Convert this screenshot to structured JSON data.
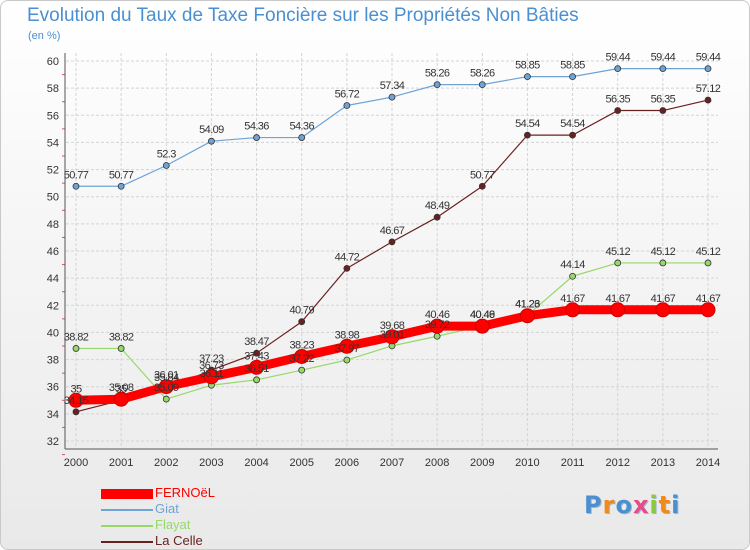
{
  "chart_data": {
    "type": "line",
    "title": "Evolution du Taux de Taxe Foncière sur les Propriétés Non Bâties",
    "unit_label": "(en %)",
    "ylim": [
      32,
      60
    ],
    "yticks": [
      "32",
      "34",
      "36",
      "38",
      "40",
      "42",
      "44",
      "46",
      "48",
      "50",
      "52",
      "54",
      "56",
      "58",
      "60"
    ],
    "x": [
      "2000",
      "2001",
      "2002",
      "2003",
      "2004",
      "2005",
      "2006",
      "2007",
      "2008",
      "2009",
      "2010",
      "2011",
      "2012",
      "2013",
      "2014"
    ],
    "grid": true,
    "legend_position": "bottom-left",
    "series": [
      {
        "name": "FERNOëL",
        "values": [
          35,
          35.08,
          36.01,
          36.73,
          37.43,
          38.23,
          38.98,
          39.68,
          40.46,
          40.46,
          41.23,
          41.67,
          41.67,
          41.67,
          41.67
        ],
        "labels": [
          "35",
          "35.08",
          "36.01",
          "36.73",
          "37.43",
          "38.23",
          "38.98",
          "39.68",
          "40.46",
          "40.46",
          "41.23",
          "41.67",
          "41.67",
          "41.67",
          "41.67"
        ],
        "color": "#ff0000",
        "width": 9,
        "marker": 7
      },
      {
        "name": "Giat",
        "values": [
          50.77,
          50.77,
          52.3,
          54.09,
          54.36,
          54.36,
          56.72,
          57.34,
          58.26,
          58.26,
          58.85,
          58.85,
          59.44,
          59.44,
          59.44
        ],
        "labels": [
          "50.77",
          "50.77",
          "52.3",
          "54.09",
          "54.36",
          "54.36",
          "56.72",
          "57.34",
          "58.26",
          "58.26",
          "58.85",
          "58.85",
          "59.44",
          "59.44",
          "59.44"
        ],
        "color": "#6fa3d6",
        "width": 1.2,
        "marker": 3
      },
      {
        "name": "Flayat",
        "values": [
          38.82,
          38.82,
          35.09,
          36.11,
          36.51,
          37.22,
          37.97,
          39.01,
          39.72,
          40.49,
          41.26,
          44.14,
          45.12,
          45.12,
          45.12
        ],
        "labels": [
          "38.82",
          "38.82",
          "35.09",
          "36.11",
          "36.51",
          "37.22",
          "37.97",
          "39.01",
          "39.72",
          "40.49",
          "41.26",
          "44.14",
          "45.12",
          "45.12",
          "45.12"
        ],
        "color": "#97d86b",
        "width": 1.2,
        "marker": 3
      },
      {
        "name": "La Celle",
        "values": [
          34.15,
          35,
          35.84,
          37.23,
          38.47,
          40.79,
          44.72,
          46.67,
          48.49,
          50.77,
          54.54,
          54.54,
          56.35,
          56.35,
          57.12
        ],
        "labels": [
          "34.15",
          "35",
          "35.84",
          "37.23",
          "38.47",
          "40.79",
          "44.72",
          "46.67",
          "48.49",
          "50.77",
          "54.54",
          "54.54",
          "56.35",
          "56.35",
          "57.12"
        ],
        "color": "#6b2020",
        "width": 1.2,
        "marker": 3
      }
    ]
  },
  "legend": [
    {
      "label": "FERNOëL",
      "color": "#ff0000"
    },
    {
      "label": "Giat",
      "color": "#6fa3d6"
    },
    {
      "label": "Flayat",
      "color": "#97d86b"
    },
    {
      "label": "La Celle",
      "color": "#6b2020"
    }
  ],
  "logo": {
    "letters": [
      "P",
      "r",
      "o",
      "x",
      "i",
      "t",
      "i"
    ],
    "colors": [
      "#4a8fd0",
      "#f08a1c",
      "#4a8fd0",
      "#e84b8a",
      "#8dc63f",
      "#f08a1c",
      "#4a8fd0"
    ]
  }
}
